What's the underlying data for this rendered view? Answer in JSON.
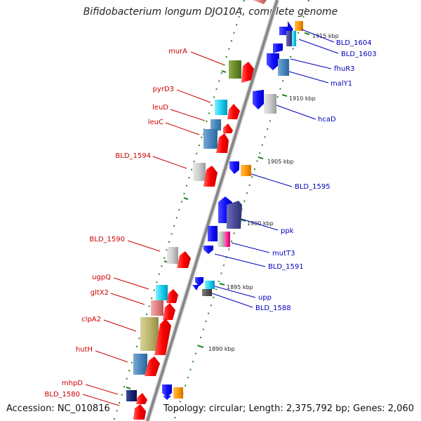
{
  "title": "Bifidobacterium longum DJO10A, complete genome",
  "footer": {
    "accession": "Accession: NC_010816",
    "summary": "Topology: circular; Length: 2,375,792 bp; Genes: 2,060"
  },
  "kbp_ticks": [
    "1915 kbp",
    "1910 kbp",
    "1905 kbp",
    "1900 kbp",
    "1895 kbp",
    "1890 kbp"
  ],
  "left_labels": [
    "murA",
    "pyrD3",
    "leuD",
    "leuC",
    "BLD_1594",
    "BLD_1590",
    "ugpQ",
    "gltX2",
    "clpA2",
    "hutH",
    "mhpD",
    "BLD_1580"
  ],
  "right_labels": [
    "BLD_1604",
    "BLD_1603",
    "fhuR3",
    "malY1",
    "hcaD",
    "BLD_1595",
    "ppk",
    "mutT3",
    "BLD_1591",
    "upp",
    "BLD_1588"
  ],
  "colors": {
    "backbone": "#888888",
    "left_label": "#cc0000",
    "right_label": "#0000bb",
    "tick": "#1e8a1e"
  }
}
